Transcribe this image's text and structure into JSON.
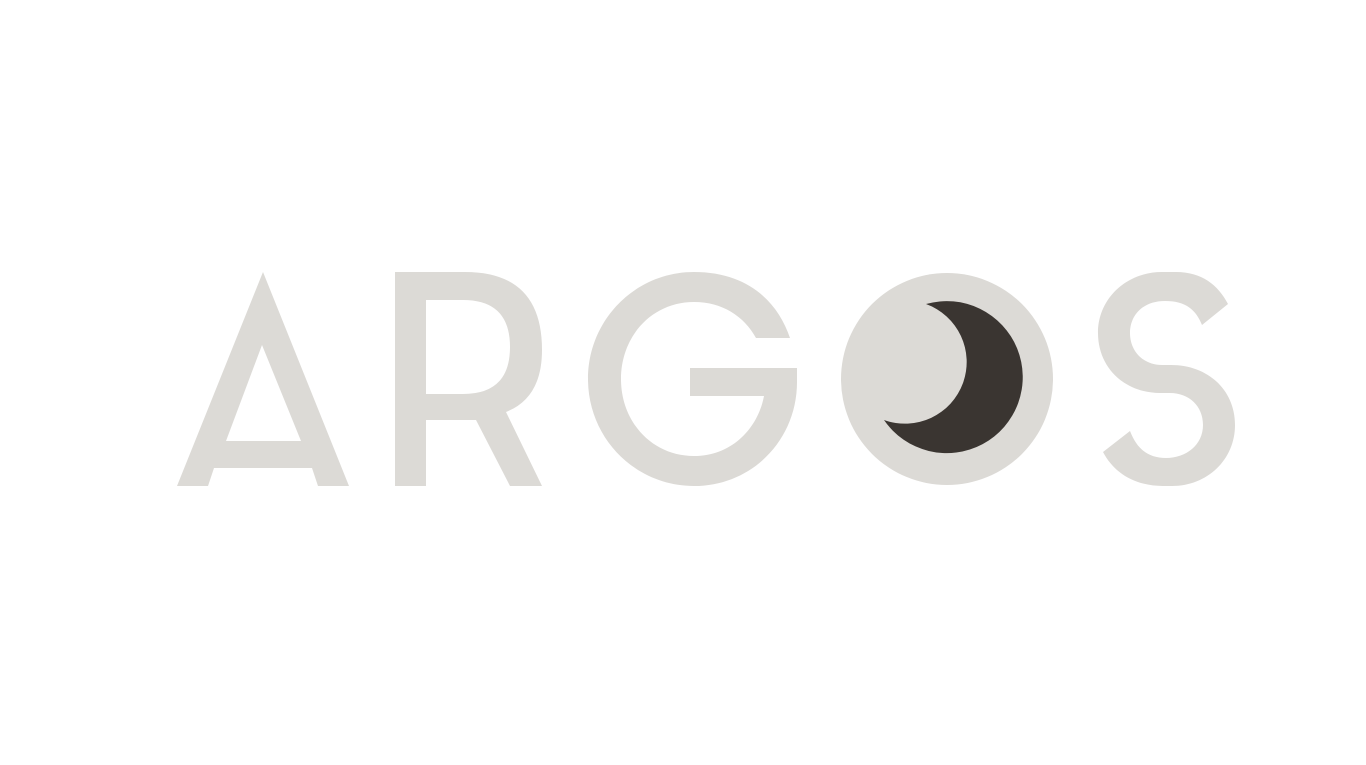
{
  "logo": {
    "wordmark": "ARGOS",
    "colors": {
      "letters": "#dcdad6",
      "moon": "#3a3531",
      "background": "#ffffff"
    },
    "icon": "crescent-moon-icon"
  }
}
